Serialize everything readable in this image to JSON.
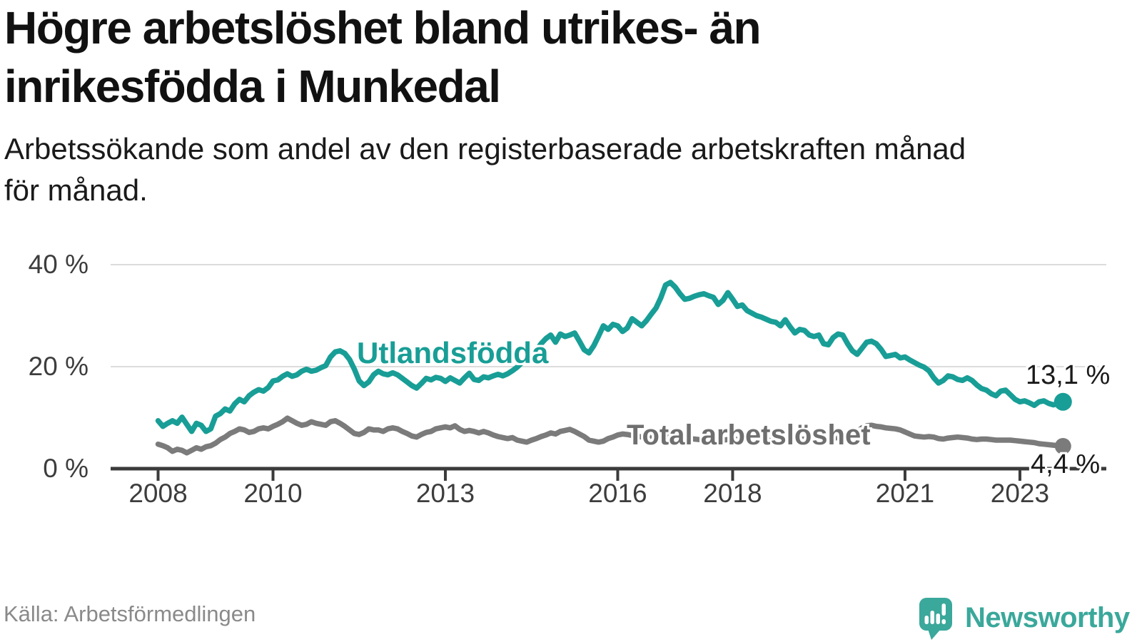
{
  "header": {
    "title_lines": [
      "Högre arbetslöshet bland utrikes- än",
      "inrikesfödda i Munkedal"
    ],
    "subtitle_lines": [
      "Arbetssökande som andel av den registerbaserade arbetskraften månad",
      "för månad."
    ]
  },
  "colors": {
    "accent_teal": "#189e96",
    "series_gray": "#7b7b7b",
    "logo_teal": "#3aa89b",
    "axis_dark": "#3b3b3b",
    "gridline": "#dcdcdc",
    "text_dark": "#1a1a1a",
    "text_muted": "#8a8a8a"
  },
  "chart_data": {
    "type": "line",
    "title": "Högre arbetslöshet bland utrikes- än inrikesfödda i Munkedal",
    "subtitle": "Arbetssökande som andel av den registerbaserade arbetskraften månad för månad.",
    "x_start": "2008-01",
    "x_end": "2023-10",
    "x_interval": "month",
    "ylim": [
      0,
      40
    ],
    "grid": "horizontal",
    "legend_position": "inline-labels",
    "y_ticks": [
      {
        "label": "0 %",
        "value": 0
      },
      {
        "label": "20 %",
        "value": 20
      },
      {
        "label": "40 %",
        "value": 40
      }
    ],
    "x_ticks": [
      {
        "label": "2008",
        "month": 0
      },
      {
        "label": "2010",
        "month": 24
      },
      {
        "label": "2013",
        "month": 60
      },
      {
        "label": "2016",
        "month": 96
      },
      {
        "label": "2018",
        "month": 120
      },
      {
        "label": "2021",
        "month": 156
      },
      {
        "label": "2023",
        "month": 180
      }
    ],
    "series": [
      {
        "name": "Utlandsfödda",
        "color": "#189e96",
        "end_label": "13,1 %",
        "end_value": 13.1,
        "values": [
          9.4,
          8.3,
          8.9,
          9.4,
          8.9,
          10.1,
          8.7,
          7.3,
          8.9,
          8.5,
          7.3,
          7.8,
          10.3,
          10.8,
          11.7,
          11.3,
          12.7,
          13.6,
          13.1,
          14.3,
          15.0,
          15.5,
          15.2,
          15.9,
          17.2,
          17.4,
          18.1,
          18.6,
          18.1,
          18.4,
          19.1,
          19.5,
          19.1,
          19.3,
          19.8,
          20.2,
          21.9,
          22.9,
          23.1,
          22.6,
          21.4,
          19.5,
          17.2,
          16.3,
          17.0,
          18.4,
          19.1,
          18.6,
          18.4,
          18.8,
          18.4,
          17.7,
          17.0,
          16.3,
          15.8,
          16.7,
          17.7,
          17.4,
          17.9,
          17.7,
          17.1,
          17.8,
          17.3,
          16.8,
          17.8,
          18.7,
          17.5,
          17.3,
          18.0,
          17.8,
          18.2,
          18.5,
          18.2,
          18.6,
          19.2,
          19.9,
          20.8,
          21.7,
          22.4,
          23.2,
          24.5,
          25.5,
          26.2,
          24.8,
          26.4,
          25.9,
          26.2,
          26.6,
          25.0,
          23.3,
          22.7,
          24.1,
          26.0,
          28.0,
          27.3,
          28.3,
          28.0,
          26.9,
          27.6,
          29.4,
          28.7,
          28.0,
          29.0,
          30.3,
          31.5,
          33.5,
          36.0,
          36.5,
          35.6,
          34.3,
          33.2,
          33.4,
          33.8,
          34.1,
          34.3,
          33.9,
          33.6,
          32.2,
          33.0,
          34.5,
          33.2,
          31.8,
          32.1,
          31.0,
          30.5,
          30.0,
          29.7,
          29.3,
          28.9,
          28.7,
          28.0,
          29.2,
          27.8,
          26.6,
          27.3,
          27.1,
          26.2,
          25.9,
          26.2,
          24.5,
          24.3,
          25.7,
          26.4,
          26.2,
          24.5,
          23.1,
          22.4,
          23.6,
          24.8,
          25.0,
          24.5,
          23.4,
          22.0,
          22.2,
          22.4,
          21.7,
          21.9,
          21.3,
          20.8,
          20.3,
          19.9,
          19.2,
          17.8,
          16.8,
          17.3,
          18.2,
          18.0,
          17.5,
          17.3,
          17.8,
          17.3,
          16.4,
          15.7,
          15.4,
          14.7,
          14.3,
          15.2,
          15.4,
          14.5,
          13.6,
          13.1,
          13.3,
          12.9,
          12.4,
          13.1,
          13.3,
          12.8,
          12.5,
          12.8,
          13.1
        ]
      },
      {
        "name": "Total arbetslöshet",
        "color": "#7b7b7b",
        "end_label": "4,4 %",
        "end_value": 4.4,
        "values": [
          4.8,
          4.5,
          4.1,
          3.4,
          3.8,
          3.6,
          3.1,
          3.6,
          4.1,
          3.8,
          4.3,
          4.5,
          5.0,
          5.7,
          6.2,
          6.9,
          7.3,
          7.8,
          7.6,
          7.1,
          7.3,
          7.8,
          8.0,
          7.8,
          8.3,
          8.7,
          9.2,
          9.9,
          9.4,
          8.9,
          8.5,
          8.7,
          9.2,
          8.9,
          8.7,
          8.5,
          9.2,
          9.4,
          8.9,
          8.3,
          7.6,
          6.9,
          6.7,
          7.1,
          7.8,
          7.6,
          7.6,
          7.3,
          7.8,
          8.0,
          7.8,
          7.3,
          6.9,
          6.4,
          6.2,
          6.7,
          7.1,
          7.3,
          7.8,
          8.0,
          8.2,
          8.0,
          8.4,
          7.7,
          7.3,
          7.5,
          7.3,
          7.0,
          7.3,
          7.0,
          6.6,
          6.3,
          6.1,
          5.9,
          6.1,
          5.6,
          5.4,
          5.2,
          5.6,
          5.9,
          6.3,
          6.6,
          7.0,
          6.8,
          7.3,
          7.5,
          7.7,
          7.3,
          6.8,
          6.3,
          5.6,
          5.4,
          5.2,
          5.4,
          5.9,
          6.2,
          6.6,
          6.8,
          6.7,
          6.5,
          6.4,
          6.2,
          6.1,
          6.3,
          6.4,
          6.3,
          6.2,
          6.1,
          6.2,
          6.1,
          6.0,
          5.9,
          5.8,
          5.7,
          5.7,
          5.8,
          5.8,
          5.7,
          5.6,
          5.7,
          5.8,
          5.7,
          5.6,
          5.5,
          5.4,
          5.4,
          5.5,
          5.6,
          5.5,
          5.4,
          5.5,
          5.6,
          5.7,
          5.6,
          5.7,
          5.8,
          5.9,
          5.8,
          5.9,
          6.0,
          5.9,
          6.0,
          6.1,
          6.2,
          6.5,
          6.7,
          7.2,
          8.0,
          8.4,
          8.5,
          8.3,
          8.2,
          8.0,
          7.9,
          7.8,
          7.6,
          7.2,
          6.8,
          6.4,
          6.3,
          6.2,
          6.3,
          6.2,
          5.9,
          5.8,
          6.0,
          6.1,
          6.2,
          6.1,
          6.0,
          5.8,
          5.7,
          5.8,
          5.8,
          5.7,
          5.6,
          5.6,
          5.6,
          5.6,
          5.5,
          5.4,
          5.3,
          5.2,
          5.1,
          4.9,
          4.8,
          4.7,
          4.6,
          4.5,
          4.4
        ]
      }
    ],
    "source": "Källa: Arbetsförmedlingen"
  },
  "footer": {
    "source": "Källa: Arbetsförmedlingen",
    "brand": "Newsworthy"
  }
}
